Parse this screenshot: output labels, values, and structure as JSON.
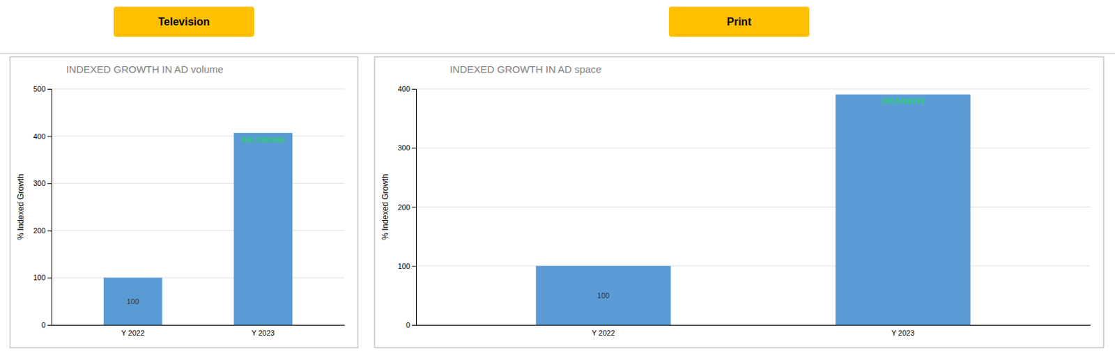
{
  "chart_data": [
    {
      "type": "bar",
      "annotations": [
        "Television"
      ],
      "title": "INDEXED GROWTH IN AD volume",
      "ylabel": "% Indexed Growth",
      "categories": [
        "Y 2022",
        "Y 2023"
      ],
      "values": [
        100,
        406.7869288
      ],
      "color": "#5B9BD5",
      "ylim": [
        0,
        500
      ],
      "yticks": [
        0,
        100,
        200,
        300,
        400,
        500
      ],
      "grid": true,
      "data_labels": true
    },
    {
      "type": "bar",
      "annotations": [
        "Print"
      ],
      "title": "INDEXED GROWTH IN AD space",
      "ylabel": "% Indexed Growth",
      "categories": [
        "Y 2022",
        "Y 2023"
      ],
      "values": [
        100,
        390.5498268
      ],
      "color": "#5B9BD5",
      "ylim": [
        0,
        400
      ],
      "yticks": [
        0,
        100,
        200,
        300,
        400
      ],
      "grid": true,
      "data_labels": true
    }
  ]
}
